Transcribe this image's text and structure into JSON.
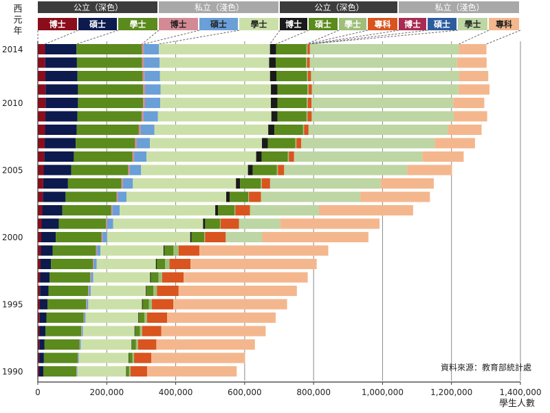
{
  "chart_data": {
    "type": "bar",
    "orientation": "horizontal",
    "stacked": true,
    "yaxis_title": "西元年",
    "xaxis_title": "學生人數",
    "source": "資料來源：教育部統計處",
    "years": [
      1990,
      1991,
      1992,
      1993,
      1994,
      1995,
      1996,
      1997,
      1998,
      1999,
      2000,
      2001,
      2002,
      2003,
      2004,
      2005,
      2006,
      2007,
      2008,
      2009,
      2010,
      2011,
      2012,
      2013,
      2014
    ],
    "year_tick_labels": [
      "1990",
      "1995",
      "2000",
      "2005",
      "2010",
      "2014"
    ],
    "xlim": [
      0,
      1400000
    ],
    "x_ticks": [
      0,
      200000,
      400000,
      600000,
      800000,
      1000000,
      1200000,
      1400000
    ],
    "x_tick_labels": [
      "0",
      "200,000",
      "400,000",
      "600,000",
      "800,000",
      "1,000,000",
      "1,200,000",
      "1,400,000"
    ],
    "header_groups": [
      {
        "label": "公立（深色）",
        "color": "#3c3c3c"
      },
      {
        "label": "私立（淺色）",
        "color": "#a8a8a8"
      },
      {
        "label": "公立（深色）",
        "color": "#3c3c3c"
      },
      {
        "label": "私立（淺色）",
        "color": "#a8a8a8"
      }
    ],
    "series": [
      {
        "name": "博士",
        "group": "公立",
        "color": "#8b0d1b",
        "legend_text_color": "#ffffff",
        "values": [
          4000,
          4200,
          4600,
          5000,
          5500,
          6000,
          6500,
          7000,
          8000,
          9000,
          10000,
          11000,
          13000,
          14500,
          15500,
          17000,
          18500,
          20000,
          21000,
          22000,
          22500,
          22500,
          22000,
          21500,
          21000
        ]
      },
      {
        "name": "碩士",
        "group": "公立",
        "color": "#0d1a4e",
        "legend_text_color": "#ffffff",
        "values": [
          12000,
          13500,
          15000,
          17000,
          19500,
          22000,
          24500,
          27000,
          30000,
          34000,
          42000,
          50000,
          58000,
          66000,
          72000,
          80000,
          86000,
          90000,
          92000,
          93000,
          94000,
          94000,
          93000,
          92000,
          91000
        ]
      },
      {
        "name": "學士",
        "group": "公立",
        "color": "#5b8a1d",
        "legend_text_color": "#ffffff",
        "values": [
          96000,
          98000,
          101000,
          104000,
          108000,
          112000,
          115000,
          118000,
          122000,
          126000,
          133000,
          137000,
          142000,
          148000,
          155000,
          165000,
          170000,
          172000,
          180000,
          186000,
          189000,
          189000,
          189000,
          189000,
          190000
        ]
      },
      {
        "name": "博士",
        "group": "私立",
        "color": "#d48a94",
        "legend_text_color": "#222222",
        "values": [
          1000,
          1100,
          1200,
          1400,
          1600,
          1800,
          2000,
          2200,
          2500,
          2800,
          3100,
          3400,
          3700,
          4000,
          4300,
          4600,
          4900,
          5200,
          5400,
          5500,
          5600,
          5700,
          5600,
          5500,
          5400
        ]
      },
      {
        "name": "碩士",
        "group": "私立",
        "color": "#6a9fd8",
        "legend_text_color": "#222222",
        "values": [
          2000,
          2400,
          2800,
          3200,
          3800,
          4500,
          5500,
          6500,
          8000,
          10000,
          13000,
          17000,
          21000,
          25000,
          29000,
          33000,
          36000,
          38000,
          40000,
          42000,
          44000,
          45000,
          45000,
          45000,
          44000
        ]
      },
      {
        "name": "學士",
        "group": "私立",
        "color": "#cbe0a8",
        "legend_text_color": "#222222",
        "values": [
          141000,
          144000,
          147000,
          150000,
          153000,
          156000,
          160000,
          165000,
          172000,
          183000,
          241000,
          261000,
          277000,
          289000,
          299000,
          310000,
          318000,
          325000,
          330000,
          329000,
          321000,
          320000,
          319000,
          318000,
          322000
        ]
      },
      {
        "name": "博士",
        "group": "公立",
        "color": "#1a1a1a",
        "legend_text_color": "#ffffff",
        "values": [
          1000,
          1100,
          1200,
          1400,
          1600,
          1800,
          2000,
          2200,
          2500,
          2800,
          4000,
          6000,
          8000,
          10000,
          12000,
          14000,
          16000,
          17000,
          18000,
          18000,
          19000,
          19000,
          19000,
          19000,
          18000
        ]
      },
      {
        "name": "碩士",
        "group": "公立",
        "color": "#5b8a1d",
        "legend_text_color": "#ffffff",
        "values": [
          8000,
          10000,
          12000,
          14000,
          16000,
          18000,
          20000,
          22000,
          24000,
          26000,
          37000,
          43000,
          48000,
          54000,
          60000,
          70000,
          76000,
          80000,
          83000,
          84000,
          85000,
          87000,
          88000,
          88000,
          88000
        ]
      },
      {
        "name": "學士",
        "group": "公立",
        "color": "#9fbe7a",
        "legend_text_color": "#ffffff",
        "values": [
          4000,
          5000,
          6000,
          7000,
          8000,
          9000,
          10000,
          11000,
          13000,
          15000,
          2000,
          2000,
          2000,
          2000,
          3000,
          3000,
          3000,
          3000,
          3000,
          3000,
          3000,
          3000,
          3000,
          3000,
          3000
        ]
      },
      {
        "name": "專科",
        "group": "公立",
        "color": "#d9541e",
        "legend_text_color": "#ffffff",
        "values": [
          48000,
          50000,
          53000,
          55000,
          58000,
          62000,
          63000,
          62000,
          61000,
          60000,
          60000,
          53000,
          43000,
          35000,
          24000,
          18000,
          15000,
          14000,
          13000,
          12000,
          11000,
          10000,
          9000,
          8000,
          7000
        ]
      },
      {
        "name": "博士",
        "group": "私立",
        "color": "#a92b54",
        "legend_text_color": "#ffffff",
        "values": [
          0,
          0,
          0,
          0,
          0,
          0,
          0,
          0,
          0,
          0,
          0,
          0,
          0,
          0,
          0,
          0,
          0,
          0,
          0,
          0,
          0,
          0,
          0,
          0,
          0
        ]
      },
      {
        "name": "碩士",
        "group": "私立",
        "color": "#2d5c9e",
        "legend_text_color": "#ffffff",
        "values": [
          0,
          0,
          0,
          0,
          0,
          0,
          0,
          0,
          0,
          0,
          0,
          0,
          0,
          0,
          0,
          0,
          0,
          0,
          0,
          0,
          0,
          0,
          0,
          0,
          0
        ]
      },
      {
        "name": "學士",
        "group": "私立",
        "color": "#bdd6a3",
        "legend_text_color": "#222222",
        "values": [
          0,
          0,
          0,
          0,
          0,
          0,
          0,
          0,
          0,
          0,
          106000,
          120000,
          200000,
          288000,
          321000,
          357000,
          372000,
          387000,
          404000,
          412000,
          411000,
          425000,
          429000,
          427000,
          432000
        ]
      },
      {
        "name": "專科",
        "group": "私立",
        "color": "#f4b78d",
        "legend_text_color": "#222222",
        "values": [
          260000,
          272000,
          286000,
          303000,
          315000,
          330000,
          343000,
          360000,
          366000,
          374000,
          308000,
          288000,
          273000,
          202000,
          154000,
          130000,
          120000,
          117000,
          98000,
          97000,
          90000,
          90000,
          85000,
          86000,
          80000
        ]
      }
    ]
  }
}
